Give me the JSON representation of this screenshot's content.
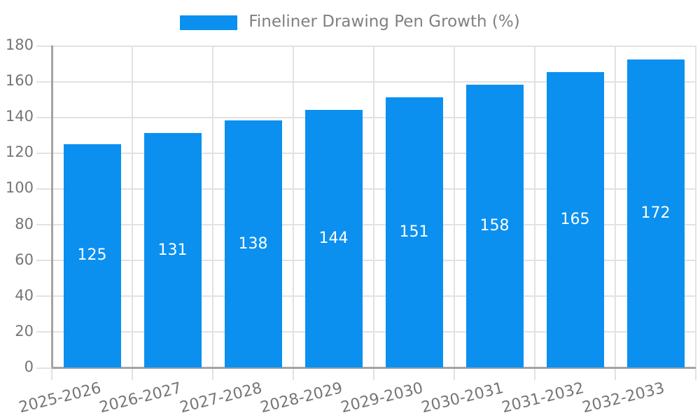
{
  "legend": {
    "label": "Fineliner Drawing Pen Growth (%)"
  },
  "chart_data": {
    "type": "bar",
    "title": "Fineliner Drawing Pen Growth (%)",
    "categories": [
      "2025-2026",
      "2026-2027",
      "2027-2028",
      "2028-2029",
      "2029-2030",
      "2030-2031",
      "2031-2032",
      "2032-2033"
    ],
    "values": [
      125,
      131,
      138,
      144,
      151,
      158,
      165,
      172
    ],
    "xlabel": "",
    "ylabel": "",
    "ylim": [
      0,
      180
    ],
    "ytick_step": 20,
    "yticks": [
      0,
      20,
      40,
      60,
      80,
      100,
      120,
      140,
      160,
      180
    ],
    "grid": true,
    "legend_position": "top",
    "value_labels": "inside-center",
    "colors": {
      "bar": "#0b90f0",
      "value_label": "#ffffff",
      "axis_text": "#757575",
      "legend_text": "#808080",
      "grid_line": "#e2e2e2",
      "axis_line": "#a3a3a3"
    }
  }
}
